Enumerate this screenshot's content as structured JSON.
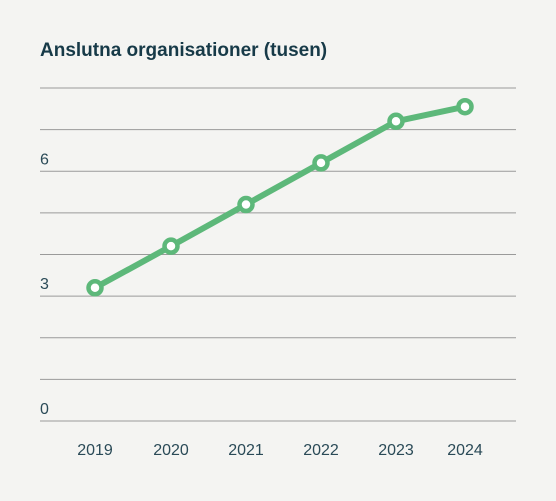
{
  "chart_data": {
    "type": "line",
    "title": "Anslutna organisationer (tusen)",
    "xlabel": "",
    "ylabel": "",
    "x": [
      "2019",
      "2020",
      "2021",
      "2022",
      "2023",
      "2024"
    ],
    "series": [
      {
        "values": [
          3.2,
          4.2,
          5.2,
          6.2,
          7.2,
          7.55
        ]
      }
    ],
    "ylim": [
      0,
      8
    ],
    "gridlines": [
      0,
      1,
      2,
      3,
      4,
      5,
      6,
      7,
      8
    ],
    "yticks": [
      {
        "value": 0,
        "label": "0"
      },
      {
        "value": 3,
        "label": "3"
      },
      {
        "value": 6,
        "label": "6"
      }
    ],
    "grid": true,
    "legend": "none",
    "colors": {
      "line": "#5db87a",
      "marker_fill": "#ffffff",
      "text": "#173a48",
      "grid": "#9a9a9a"
    }
  }
}
